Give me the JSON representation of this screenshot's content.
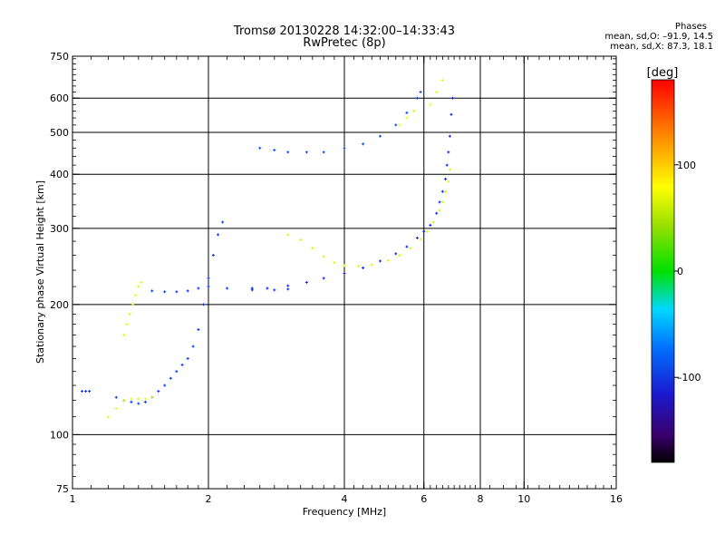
{
  "header": {
    "title_line1": "Tromsø 20130228 14:32:00–14:33:43",
    "title_line2": "RwPretec (8p)",
    "phases_heading": "Phases",
    "phases_o": "mean, sd,O: –91.9, 14.5",
    "phases_x": "mean, sd,X: 87.3, 18.1"
  },
  "colorbar": {
    "unit_label": "[deg]",
    "ticks": [
      {
        "value": 100,
        "label": "100"
      },
      {
        "value": 0,
        "label": "0"
      },
      {
        "value": -100,
        "label": "–100"
      }
    ],
    "range": [
      -180,
      180
    ]
  },
  "chart_data": {
    "type": "scatter",
    "title": "Tromsø 20130228 14:32:00–14:33:43",
    "subtitle": "RwPretec (8p)",
    "xlabel": "Frequency [MHz]",
    "ylabel": "Stationary phase Virtual Height [km]",
    "x_scale": "log",
    "y_scale": "log",
    "xlim": [
      1,
      16
    ],
    "ylim": [
      75,
      750
    ],
    "xticks": [
      {
        "value": 1,
        "label": "1"
      },
      {
        "value": 2,
        "label": "2"
      },
      {
        "value": 4,
        "label": "4"
      },
      {
        "value": 6,
        "label": "6"
      },
      {
        "value": 8,
        "label": "8"
      },
      {
        "value": 10,
        "label": "10"
      },
      {
        "value": 16,
        "label": "16"
      }
    ],
    "yticks": [
      {
        "value": 75,
        "label": "75"
      },
      {
        "value": 100,
        "label": "100"
      },
      {
        "value": 200,
        "label": "200"
      },
      {
        "value": 300,
        "label": "300"
      },
      {
        "value": 400,
        "label": "400"
      },
      {
        "value": 500,
        "label": "500"
      },
      {
        "value": 600,
        "label": "600"
      },
      {
        "value": 750,
        "label": "750"
      }
    ],
    "vertical_gridlines": [
      2,
      4,
      6,
      8,
      10
    ],
    "horizontal_gridlines": [
      100,
      200,
      300,
      400,
      500,
      600
    ],
    "grid": true,
    "color_scale": "rainbow phase (deg), -180 black/purple to 180 red",
    "traces": [
      {
        "name": "",
        "phase": -105,
        "points": [
          [
            1.05,
            126
          ],
          [
            1.07,
            126
          ],
          [
            1.09,
            126
          ],
          [
            1.25,
            122
          ],
          [
            1.3,
            120
          ],
          [
            1.35,
            119
          ],
          [
            1.4,
            118
          ],
          [
            1.45,
            119
          ],
          [
            1.5,
            122
          ],
          [
            1.55,
            126
          ],
          [
            1.6,
            130
          ],
          [
            1.65,
            135
          ],
          [
            1.7,
            140
          ],
          [
            1.75,
            145
          ],
          [
            1.8,
            150
          ],
          [
            1.85,
            160
          ],
          [
            1.9,
            175
          ],
          [
            1.95,
            200
          ],
          [
            2.0,
            230
          ],
          [
            2.05,
            260
          ],
          [
            2.1,
            290
          ],
          [
            2.15,
            310
          ]
        ]
      },
      {
        "name": "",
        "phase": 95,
        "points": [
          [
            1.2,
            110
          ],
          [
            1.25,
            115
          ],
          [
            1.3,
            120
          ],
          [
            1.35,
            121
          ],
          [
            1.4,
            121
          ],
          [
            1.45,
            121
          ],
          [
            1.5,
            122
          ]
        ]
      },
      {
        "name": "",
        "phase": 95,
        "points": [
          [
            1.3,
            170
          ],
          [
            1.32,
            180
          ],
          [
            1.34,
            190
          ],
          [
            1.36,
            200
          ],
          [
            1.38,
            210
          ],
          [
            1.4,
            220
          ],
          [
            1.42,
            225
          ]
        ]
      },
      {
        "name": "",
        "phase": -105,
        "points": [
          [
            1.5,
            215
          ],
          [
            1.6,
            214
          ],
          [
            1.7,
            214
          ],
          [
            1.8,
            215
          ],
          [
            1.9,
            218
          ],
          [
            2.0,
            220
          ],
          [
            2.2,
            218
          ],
          [
            2.5,
            216
          ],
          [
            2.8,
            216
          ],
          [
            3.0,
            217
          ]
        ]
      },
      {
        "name": "",
        "phase": -110,
        "points": [
          [
            2.5,
            218
          ],
          [
            2.7,
            218
          ],
          [
            3.0,
            221
          ],
          [
            3.3,
            225
          ],
          [
            3.6,
            230
          ],
          [
            4.0,
            236
          ],
          [
            4.4,
            243
          ],
          [
            4.8,
            252
          ],
          [
            5.2,
            262
          ],
          [
            5.5,
            272
          ],
          [
            5.8,
            285
          ],
          [
            6.0,
            295
          ],
          [
            6.2,
            305
          ],
          [
            6.4,
            325
          ],
          [
            6.5,
            345
          ],
          [
            6.6,
            365
          ],
          [
            6.7,
            390
          ],
          [
            6.75,
            420
          ],
          [
            6.8,
            450
          ],
          [
            6.85,
            490
          ],
          [
            6.9,
            550
          ],
          [
            6.95,
            600
          ]
        ]
      },
      {
        "name": "",
        "phase": 90,
        "points": [
          [
            3.0,
            290
          ],
          [
            3.2,
            282
          ],
          [
            3.4,
            270
          ],
          [
            3.6,
            258
          ],
          [
            3.8,
            250
          ],
          [
            4.0,
            246
          ],
          [
            4.3,
            245
          ],
          [
            4.6,
            247
          ],
          [
            5.0,
            253
          ],
          [
            5.3,
            260
          ],
          [
            5.6,
            270
          ],
          [
            5.9,
            283
          ],
          [
            6.1,
            295
          ],
          [
            6.3,
            310
          ],
          [
            6.5,
            330
          ],
          [
            6.6,
            345
          ],
          [
            6.7,
            365
          ],
          [
            6.8,
            385
          ],
          [
            6.85,
            410
          ]
        ]
      },
      {
        "name": "",
        "phase": -100,
        "points": [
          [
            2.6,
            460
          ],
          [
            2.8,
            455
          ],
          [
            3.0,
            450
          ],
          [
            3.3,
            450
          ],
          [
            3.6,
            450
          ],
          [
            4.0,
            460
          ],
          [
            4.4,
            470
          ],
          [
            4.8,
            490
          ],
          [
            5.2,
            520
          ],
          [
            5.5,
            555
          ],
          [
            5.8,
            600
          ],
          [
            5.9,
            620
          ]
        ]
      },
      {
        "name": "",
        "phase": 95,
        "points": [
          [
            5.3,
            520
          ],
          [
            5.5,
            540
          ],
          [
            5.7,
            560
          ],
          [
            6.2,
            580
          ],
          [
            6.4,
            620
          ],
          [
            6.6,
            660
          ]
        ]
      }
    ]
  }
}
